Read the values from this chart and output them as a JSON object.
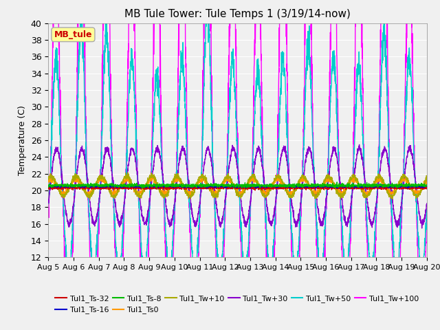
{
  "title": "MB Tule Tower: Tule Temps 1 (3/19/14-now)",
  "ylabel": "Temperature (C)",
  "ylim": [
    12,
    40
  ],
  "yticks": [
    12,
    14,
    16,
    18,
    20,
    22,
    24,
    26,
    28,
    30,
    32,
    34,
    36,
    38,
    40
  ],
  "xlabel_dates": [
    "Aug 5",
    "Aug 6",
    "Aug 7",
    "Aug 8",
    "Aug 9",
    "Aug 10",
    "Aug 11",
    "Aug 12",
    "Aug 13",
    "Aug 14",
    "Aug 15",
    "Aug 16",
    "Aug 17",
    "Aug 18",
    "Aug 19",
    "Aug 20"
  ],
  "legend_label": "MB_tule",
  "series_labels": [
    "Tul1_Ts-32",
    "Tul1_Ts-16",
    "Tul1_Ts-8",
    "Tul1_Ts0",
    "Tul1_Tw+10",
    "Tul1_Tw+30",
    "Tul1_Tw+50",
    "Tul1_Tw+100"
  ],
  "series_colors": [
    "#cc0000",
    "#0000cc",
    "#00bb00",
    "#ff9900",
    "#aaaa00",
    "#8800cc",
    "#00cccc",
    "#ff00ff"
  ],
  "bg_color": "#f0f0f0",
  "plot_bg": "#f0f0f0",
  "grid_color": "#ffffff",
  "n_points": 3000
}
